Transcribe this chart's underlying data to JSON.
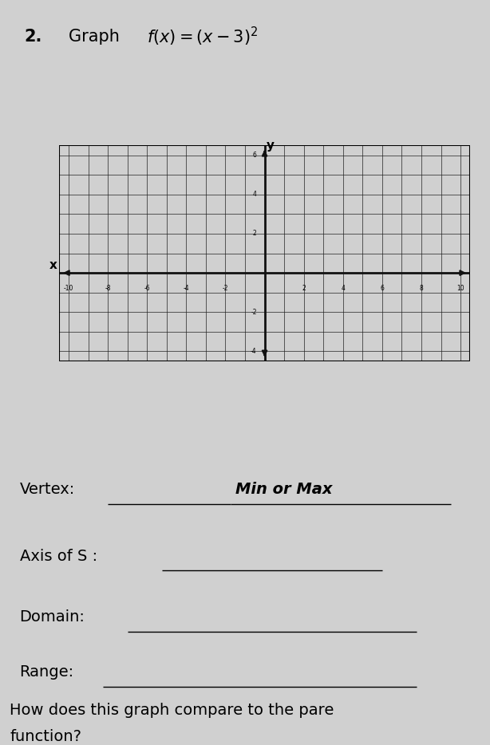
{
  "title_number": "2.",
  "title_text": "Graph ",
  "title_formula": "f(x) = (x-3)^2",
  "background_color": "#d0d0d0",
  "grid_color": "#222222",
  "axis_color": "#111111",
  "x_min": -10,
  "x_max": 10,
  "y_min": -4,
  "y_max": 6,
  "x_label": "x",
  "y_label": "y",
  "vertex_label": "Vertex:",
  "min_max_label": "Min or Max",
  "axis_s_label": "Axis of S :",
  "domain_label": "Domain:",
  "range_label": "Range:",
  "compare_label": "How does this graph compare to the pare",
  "function_label": "function?",
  "font_size_title": 15,
  "font_size_labels": 14,
  "font_size_body": 14,
  "tick_positions_x": [
    -10,
    -8,
    -6,
    -4,
    -2,
    2,
    4,
    6,
    8,
    10
  ],
  "tick_labels_x": [
    "-10",
    "-8",
    "-6",
    "-4",
    "-2",
    "2",
    "4",
    "6",
    "8",
    "10"
  ],
  "tick_positions_y": [
    -4,
    -2,
    2,
    4,
    6
  ],
  "tick_labels_y": [
    "-4",
    "-2",
    "2",
    "4",
    "6"
  ]
}
